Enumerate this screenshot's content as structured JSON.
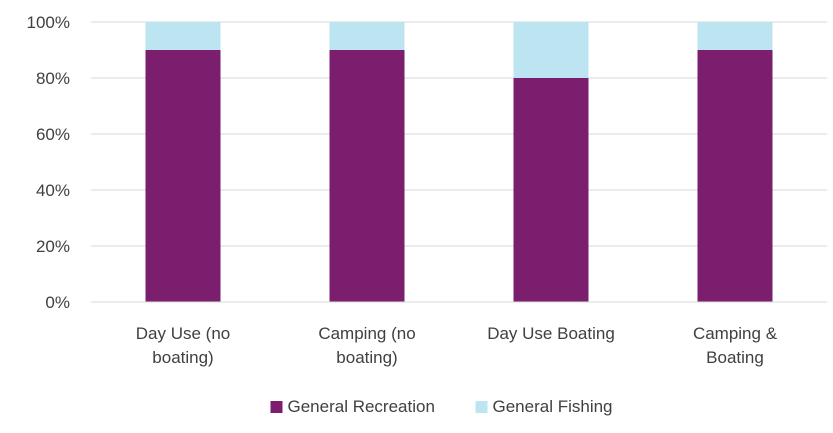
{
  "chart_data": {
    "type": "bar",
    "stacked": true,
    "percent_stacked": true,
    "categories": [
      [
        "Day Use (no",
        "boating)"
      ],
      [
        "Camping (no",
        "boating)"
      ],
      [
        "Day Use Boating"
      ],
      [
        "Camping &",
        "Boating"
      ]
    ],
    "series": [
      {
        "name": "General Recreation",
        "values": [
          90,
          90,
          80,
          90
        ],
        "color": "#7B1E6E"
      },
      {
        "name": "General Fishing",
        "values": [
          10,
          10,
          20,
          10
        ],
        "color": "#BDE4F1"
      }
    ],
    "y_ticks": [
      "0%",
      "20%",
      "40%",
      "60%",
      "80%",
      "100%"
    ],
    "ylim": [
      0,
      100
    ],
    "grid": true,
    "legend_position": "bottom"
  }
}
